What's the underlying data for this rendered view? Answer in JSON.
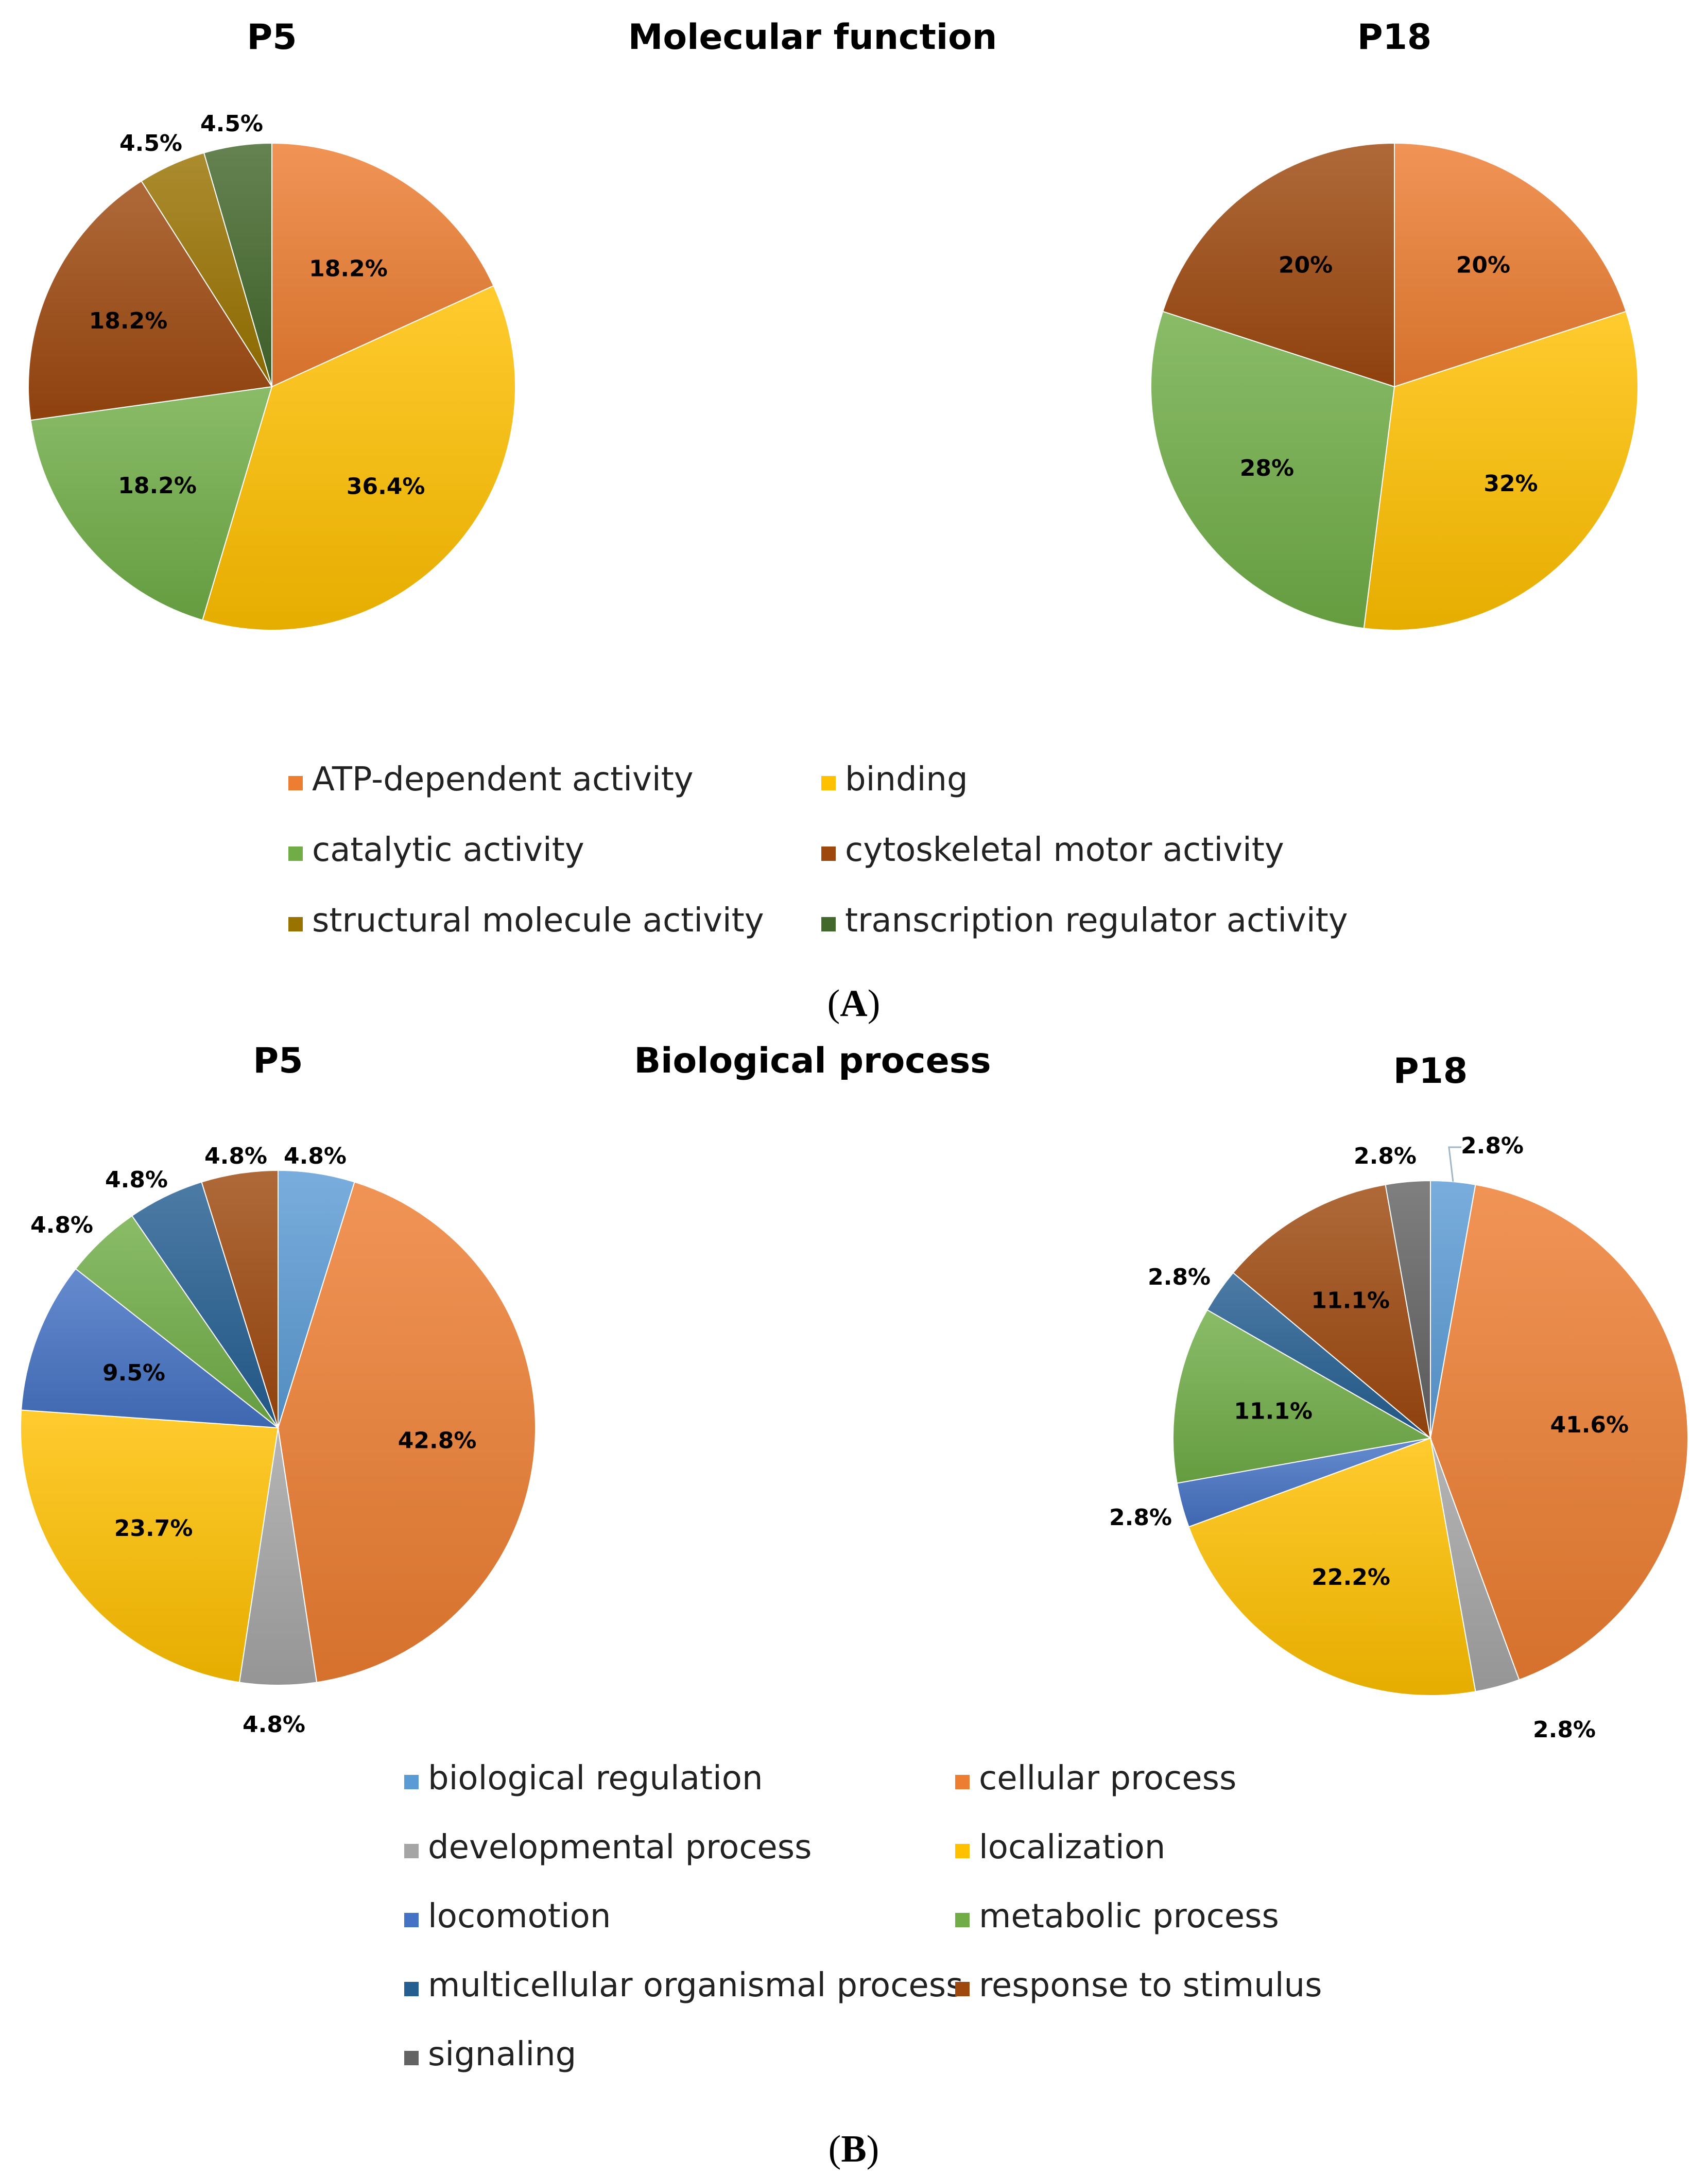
{
  "panels": [
    {
      "id": "A",
      "caption": {
        "open": "(",
        "letter": "A",
        "close": ")"
      },
      "title": "Molecular function",
      "legend": [
        {
          "label": "ATP-dependent activity",
          "color": "#ED7D31"
        },
        {
          "label": "binding",
          "color": "#FFC000"
        },
        {
          "label": "catalytic activity",
          "color": "#70AD47"
        },
        {
          "label": "cytoskeletal motor activity",
          "color": "#9E480E"
        },
        {
          "label": "structural molecule activity",
          "color": "#997300"
        },
        {
          "label": "transcription regulator activity",
          "color": "#43682B"
        }
      ]
    },
    {
      "id": "B",
      "caption": {
        "open": "(",
        "letter": "B",
        "close": ")"
      },
      "title": "Biological process",
      "legend": [
        {
          "label": "biological regulation",
          "color": "#5B9BD5"
        },
        {
          "label": "cellular process",
          "color": "#ED7D31"
        },
        {
          "label": "developmental process",
          "color": "#A5A5A5"
        },
        {
          "label": "localization",
          "color": "#FFC000"
        },
        {
          "label": "locomotion",
          "color": "#4472C4"
        },
        {
          "label": "metabolic process",
          "color": "#70AD47"
        },
        {
          "label": "multicellular organismal process",
          "color": "#255E91"
        },
        {
          "label": "response to stimulus",
          "color": "#9E480E"
        },
        {
          "label": "signaling",
          "color": "#636363"
        }
      ]
    }
  ],
  "chart_data": [
    {
      "type": "pie",
      "panel": "A",
      "title": "P5",
      "slices": [
        {
          "category": "ATP-dependent activity",
          "value": 18.2,
          "label": "18.2%",
          "color": "#ED7D31"
        },
        {
          "category": "binding",
          "value": 36.4,
          "label": "36.4%",
          "color": "#FFC000"
        },
        {
          "category": "catalytic activity",
          "value": 18.2,
          "label": "18.2%",
          "color": "#70AD47"
        },
        {
          "category": "cytoskeletal motor activity",
          "value": 18.2,
          "label": "18.2%",
          "color": "#9E480E"
        },
        {
          "category": "structural molecule activity",
          "value": 4.5,
          "label": "4.5%",
          "color": "#997300"
        },
        {
          "category": "transcription regulator activity",
          "value": 4.5,
          "label": "4.5%",
          "color": "#43682B"
        }
      ]
    },
    {
      "type": "pie",
      "panel": "A",
      "title": "P18",
      "slices": [
        {
          "category": "ATP-dependent activity",
          "value": 20,
          "label": "20%",
          "color": "#ED7D31"
        },
        {
          "category": "binding",
          "value": 32,
          "label": "32%",
          "color": "#FFC000"
        },
        {
          "category": "catalytic activity",
          "value": 28,
          "label": "28%",
          "color": "#70AD47"
        },
        {
          "category": "cytoskeletal motor activity",
          "value": 20,
          "label": "20%",
          "color": "#9E480E"
        }
      ]
    },
    {
      "type": "pie",
      "panel": "B",
      "title": "P5",
      "slices": [
        {
          "category": "biological regulation",
          "value": 4.8,
          "label": "4.8%",
          "color": "#5B9BD5"
        },
        {
          "category": "cellular process",
          "value": 42.8,
          "label": "42.8%",
          "color": "#ED7D31"
        },
        {
          "category": "developmental process",
          "value": 4.8,
          "label": "4.8%",
          "color": "#A5A5A5"
        },
        {
          "category": "localization",
          "value": 23.7,
          "label": "23.7%",
          "color": "#FFC000"
        },
        {
          "category": "locomotion",
          "value": 9.5,
          "label": "9.5%",
          "color": "#4472C4"
        },
        {
          "category": "metabolic process",
          "value": 4.8,
          "label": "4.8%",
          "color": "#70AD47"
        },
        {
          "category": "multicellular organismal process",
          "value": 4.8,
          "label": "4.8%",
          "color": "#255E91"
        },
        {
          "category": "response to stimulus",
          "value": 4.8,
          "label": "4.8%",
          "color": "#9E480E"
        }
      ]
    },
    {
      "type": "pie",
      "panel": "B",
      "title": "P18",
      "slices": [
        {
          "category": "biological regulation",
          "value": 2.8,
          "label": "2.8%",
          "color": "#5B9BD5"
        },
        {
          "category": "cellular process",
          "value": 41.6,
          "label": "41.6%",
          "color": "#ED7D31"
        },
        {
          "category": "developmental process",
          "value": 2.8,
          "label": "2.8%",
          "color": "#A5A5A5"
        },
        {
          "category": "localization",
          "value": 22.2,
          "label": "22.2%",
          "color": "#FFC000"
        },
        {
          "category": "locomotion",
          "value": 2.8,
          "label": "2.8%",
          "color": "#4472C4"
        },
        {
          "category": "metabolic process",
          "value": 11.1,
          "label": "11.1%",
          "color": "#70AD47"
        },
        {
          "category": "multicellular organismal process",
          "value": 2.8,
          "label": "2.8%",
          "color": "#255E91"
        },
        {
          "category": "response to stimulus",
          "value": 11.1,
          "label": "11.1%",
          "color": "#9E480E"
        },
        {
          "category": "signaling",
          "value": 2.8,
          "label": "2.8%",
          "color": "#636363"
        }
      ]
    }
  ]
}
